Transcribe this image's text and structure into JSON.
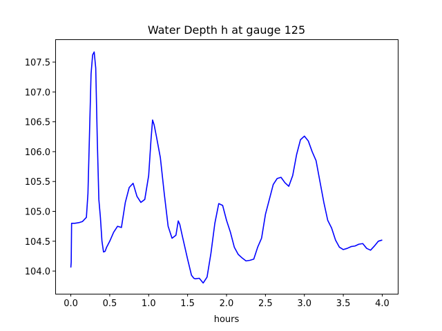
{
  "chart_data": {
    "type": "line",
    "title": "Water Depth h at gauge 125",
    "xlabel": "hours",
    "ylabel": "",
    "xlim": [
      -0.2,
      4.2
    ],
    "ylim": [
      103.62,
      107.87
    ],
    "xticks": [
      0.0,
      0.5,
      1.0,
      1.5,
      2.0,
      2.5,
      3.0,
      3.5,
      4.0
    ],
    "xtick_labels": [
      "0.0",
      "0.5",
      "1.0",
      "1.5",
      "2.0",
      "2.5",
      "3.0",
      "3.5",
      "4.0"
    ],
    "yticks": [
      104.0,
      104.5,
      105.0,
      105.5,
      106.0,
      106.5,
      107.0,
      107.5
    ],
    "ytick_labels": [
      "104.0",
      "104.5",
      "105.0",
      "105.5",
      "106.0",
      "106.5",
      "107.0",
      "107.5"
    ],
    "grid": false,
    "series": [
      {
        "color": "#0000ff",
        "x": [
          0.0,
          0.005,
          0.01,
          0.05,
          0.1,
          0.15,
          0.2,
          0.22,
          0.24,
          0.26,
          0.28,
          0.3,
          0.32,
          0.34,
          0.36,
          0.38,
          0.4,
          0.42,
          0.44,
          0.46,
          0.5,
          0.55,
          0.6,
          0.65,
          0.7,
          0.75,
          0.8,
          0.85,
          0.9,
          0.95,
          1.0,
          1.03,
          1.05,
          1.07,
          1.1,
          1.15,
          1.2,
          1.25,
          1.3,
          1.35,
          1.38,
          1.4,
          1.43,
          1.5,
          1.55,
          1.58,
          1.6,
          1.65,
          1.7,
          1.75,
          1.8,
          1.85,
          1.9,
          1.95,
          2.0,
          2.05,
          2.1,
          2.15,
          2.2,
          2.25,
          2.3,
          2.35,
          2.4,
          2.45,
          2.5,
          2.55,
          2.6,
          2.65,
          2.7,
          2.75,
          2.8,
          2.85,
          2.9,
          2.95,
          3.0,
          3.05,
          3.1,
          3.15,
          3.2,
          3.25,
          3.3,
          3.35,
          3.4,
          3.45,
          3.5,
          3.55,
          3.6,
          3.65,
          3.7,
          3.75,
          3.8,
          3.85,
          3.9,
          3.95,
          4.0
        ],
        "y": [
          104.06,
          104.15,
          104.8,
          104.8,
          104.81,
          104.83,
          104.9,
          105.3,
          106.3,
          107.3,
          107.62,
          107.67,
          107.4,
          106.2,
          105.2,
          104.9,
          104.5,
          104.32,
          104.33,
          104.4,
          104.5,
          104.65,
          104.75,
          104.73,
          105.15,
          105.4,
          105.47,
          105.25,
          105.15,
          105.2,
          105.6,
          106.2,
          106.53,
          106.45,
          106.25,
          105.9,
          105.3,
          104.75,
          104.55,
          104.6,
          104.84,
          104.78,
          104.6,
          104.2,
          103.93,
          103.88,
          103.87,
          103.88,
          103.8,
          103.9,
          104.3,
          104.8,
          105.13,
          105.1,
          104.85,
          104.65,
          104.4,
          104.28,
          104.22,
          104.17,
          104.18,
          104.2,
          104.4,
          104.55,
          104.95,
          105.2,
          105.45,
          105.55,
          105.57,
          105.48,
          105.42,
          105.6,
          105.95,
          106.2,
          106.26,
          106.18,
          106.0,
          105.85,
          105.5,
          105.15,
          104.85,
          104.72,
          104.52,
          104.4,
          104.36,
          104.38,
          104.41,
          104.42,
          104.45,
          104.46,
          104.38,
          104.35,
          104.42,
          104.5,
          104.52
        ]
      }
    ]
  }
}
